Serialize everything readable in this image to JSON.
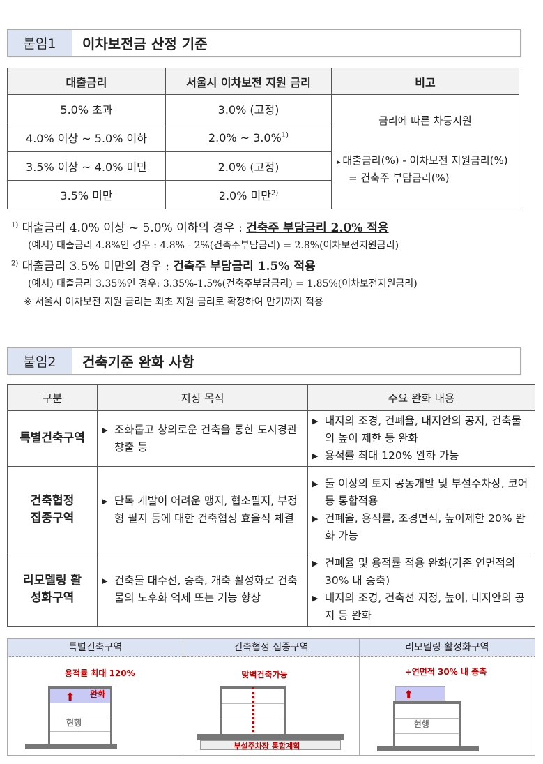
{
  "section1": {
    "label": "붙임1",
    "title": "이차보전금 산정 기준"
  },
  "table1": {
    "headers": [
      "대출금리",
      "서울시 이차보전 지원 금리",
      "비고"
    ],
    "rows": [
      [
        "5.0% 초과",
        "3.0% (고정)",
        ""
      ],
      [
        "4.0% 이상 ~ 5.0% 이하",
        "2.0% ~ 3.0%",
        "1)"
      ],
      [
        "3.5% 이상 ~ 4.0% 미만",
        "2.0% (고정)",
        ""
      ],
      [
        "3.5% 미만",
        "2.0% 미만",
        "2)"
      ]
    ],
    "remark_main": "금리에 따른 차등지원",
    "remark_formula1": "대출금리(%) - 이차보전 지원금리(%)",
    "remark_formula2": "= 건축주 부담금리(%)"
  },
  "notes": [
    {
      "mark": "1)",
      "text": "대출금리 4.0% 이상 ~ 5.0% 이하의 경우 : ",
      "emph": "건축주 부담금리 2.0% 적용",
      "example": "(예시) 대출금리 4.8%인 경우 : 4.8% - 2%(건축주부담금리) = 2.8%(이차보전지원금리)"
    },
    {
      "mark": "2)",
      "text": "대출금리 3.5% 미만의 경우 : ",
      "emph": "건축주 부담금리 1.5% 적용",
      "example": "(예시) 대출금리 3.35%인 경우: 3.35%-1.5%(건축주부담금리) = 1.85%(이차보전지원금리)"
    }
  ],
  "note_footer": "※ 서울시 이차보전 지원 금리는 최초 지원 금리로 확정하여 만기까지 적용",
  "section2": {
    "label": "붙임2",
    "title": "건축기준 완화 사항"
  },
  "table2": {
    "headers": [
      "구분",
      "지정 목적",
      "주요 완화 내용"
    ],
    "rows": [
      {
        "name": "특별건축구역",
        "purpose": [
          "조화롭고 창의로운 건축을 통한 도시경관 창출 등"
        ],
        "relief": [
          "대지의 조경, 건폐율, 대지안의 공지, 건축물의 높이 제한 등 완화",
          "용적률 최대 120% 완화 가능"
        ]
      },
      {
        "name": "건축협정 집중구역",
        "purpose": [
          "단독 개발이 어려운 맹지, 협소필지, 부정형 필지 등에 대한 건축협정 효율적 체결"
        ],
        "relief": [
          "둘 이상의 토지 공동개발 및 부설주차장, 코어 등 통합적용",
          "건폐율, 용적률, 조경면적, 높이제한 20% 완화 가능"
        ]
      },
      {
        "name": "리모델링 활성화구역",
        "purpose": [
          "건축물 대수선, 증축, 개축 활성화로 건축물의 노후화 억제 또는 기능 향상"
        ],
        "relief": [
          "건폐율 및 용적률 적용 완화(기존 연면적의 30% 내 증축)",
          "대지의 조경, 건축선 지정, 높이, 대지안의 공지 등 완화"
        ]
      }
    ]
  },
  "diagrams": [
    {
      "title": "특별건축구역",
      "label": "용적률 최대 120%",
      "tag": "완화",
      "current": "현행"
    },
    {
      "title": "건축협정 집중구역",
      "label": "맞벽건축가능",
      "base": "부설주차장 통합계획"
    },
    {
      "title": "리모델링 활성화구역",
      "label": "+연면적 30% 내 증축",
      "current": "현행"
    }
  ],
  "colors": {
    "header_label_bg": "#dce3f3",
    "table_header_bg": "#f2f2f2",
    "accent_red": "#c00000",
    "annex_fill": "#c9c9f5"
  }
}
